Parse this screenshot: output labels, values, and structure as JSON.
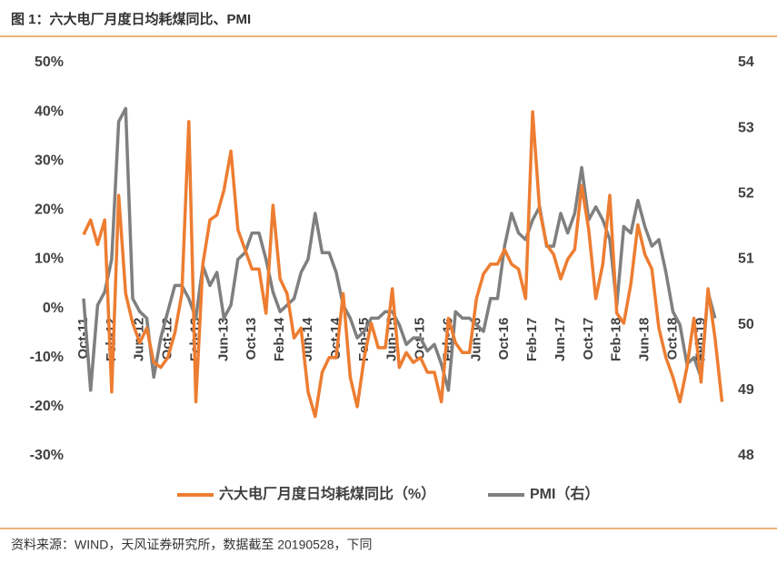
{
  "chart_data": {
    "type": "line",
    "title": "图 1：六大电厂月度日均耗煤同比、PMI",
    "source": "资料来源：WIND，天风证券研究所，数据截至 20190528，下同",
    "categories": [
      "Oct-11",
      null,
      null,
      null,
      "Feb-12",
      null,
      null,
      null,
      "Jun-12",
      null,
      null,
      null,
      "Oct-12",
      null,
      null,
      null,
      "Feb-13",
      null,
      null,
      null,
      "Jun-13",
      null,
      null,
      null,
      "Oct-13",
      null,
      null,
      null,
      "Feb-14",
      null,
      null,
      null,
      "Jun-14",
      null,
      null,
      null,
      "Oct-14",
      null,
      null,
      null,
      "Feb-15",
      null,
      null,
      null,
      "Jun-15",
      null,
      null,
      null,
      "Oct-15",
      null,
      null,
      null,
      "Feb-16",
      null,
      null,
      null,
      "Jun-16",
      null,
      null,
      null,
      "Oct-16",
      null,
      null,
      null,
      "Feb-17",
      null,
      null,
      null,
      "Jun-17",
      null,
      null,
      null,
      "Oct-17",
      null,
      null,
      null,
      "Feb-18",
      null,
      null,
      null,
      "Jun-18",
      null,
      null,
      null,
      "Oct-18",
      null,
      null,
      null,
      "Feb-19",
      null,
      null,
      null
    ],
    "series": [
      {
        "name": "六大电厂月度日均耗煤同比（%）",
        "color": "#ed7d31",
        "axis": "y",
        "values": [
          15,
          18,
          13,
          18,
          -17,
          23,
          3,
          -3,
          -7,
          -4,
          -11,
          -12,
          -10,
          -5,
          3,
          38,
          -19,
          9,
          18,
          19,
          24,
          32,
          16,
          12,
          8,
          8,
          -1,
          21,
          6,
          3,
          -6,
          -4,
          -17,
          -22,
          -13,
          -10,
          -10,
          3,
          -14,
          -20,
          -10,
          -3,
          -8,
          -8,
          4,
          -12,
          -9,
          -11,
          -10,
          -13,
          -13,
          -19,
          -2,
          -7,
          -9,
          -9,
          2,
          7,
          9,
          9,
          12,
          9,
          8,
          2,
          40,
          20,
          13,
          11,
          6,
          10,
          12,
          25,
          16,
          2,
          9,
          23,
          -1,
          -3,
          5,
          17,
          11,
          8,
          -4,
          -10,
          -14,
          -19,
          -12,
          -2,
          -15,
          4,
          -6,
          -19
        ]
      },
      {
        "name": "PMI（右）",
        "color": "#7f7f7f",
        "axis": "y2",
        "values": [
          50.4,
          49.0,
          50.3,
          50.5,
          51.0,
          53.1,
          53.3,
          50.4,
          50.2,
          50.1,
          49.2,
          49.8,
          50.2,
          50.6,
          50.6,
          50.4,
          50.1,
          50.9,
          50.6,
          50.8,
          50.1,
          50.3,
          51.0,
          51.1,
          51.4,
          51.4,
          51.0,
          50.5,
          50.2,
          50.3,
          50.4,
          50.8,
          51.0,
          51.7,
          51.1,
          51.1,
          50.8,
          50.3,
          50.1,
          49.8,
          49.9,
          50.1,
          50.1,
          50.2,
          50.2,
          50.0,
          49.7,
          49.8,
          49.8,
          49.6,
          49.7,
          49.4,
          49.0,
          50.2,
          50.1,
          50.1,
          50.0,
          49.9,
          50.4,
          50.4,
          51.2,
          51.7,
          51.4,
          51.3,
          51.6,
          51.8,
          51.2,
          51.2,
          51.7,
          51.4,
          51.7,
          52.4,
          51.6,
          51.8,
          51.6,
          51.3,
          50.3,
          51.5,
          51.4,
          51.9,
          51.5,
          51.2,
          51.3,
          50.8,
          50.2,
          50.0,
          49.4,
          49.5,
          49.2,
          50.5,
          50.1,
          null
        ]
      }
    ],
    "ylim": [
      -30,
      50
    ],
    "yticks": [
      {
        "value": -30,
        "label": "-30%"
      },
      {
        "value": -20,
        "label": "-20%"
      },
      {
        "value": -10,
        "label": "-10%"
      },
      {
        "value": 0,
        "label": "0%"
      },
      {
        "value": 10,
        "label": "10%"
      },
      {
        "value": 20,
        "label": "20%"
      },
      {
        "value": 30,
        "label": "30%"
      },
      {
        "value": 40,
        "label": "40%"
      },
      {
        "value": 50,
        "label": "50%"
      }
    ],
    "y2lim": [
      48,
      54
    ],
    "y2ticks": [
      48,
      49,
      50,
      51,
      52,
      53,
      54
    ],
    "grid": false
  }
}
